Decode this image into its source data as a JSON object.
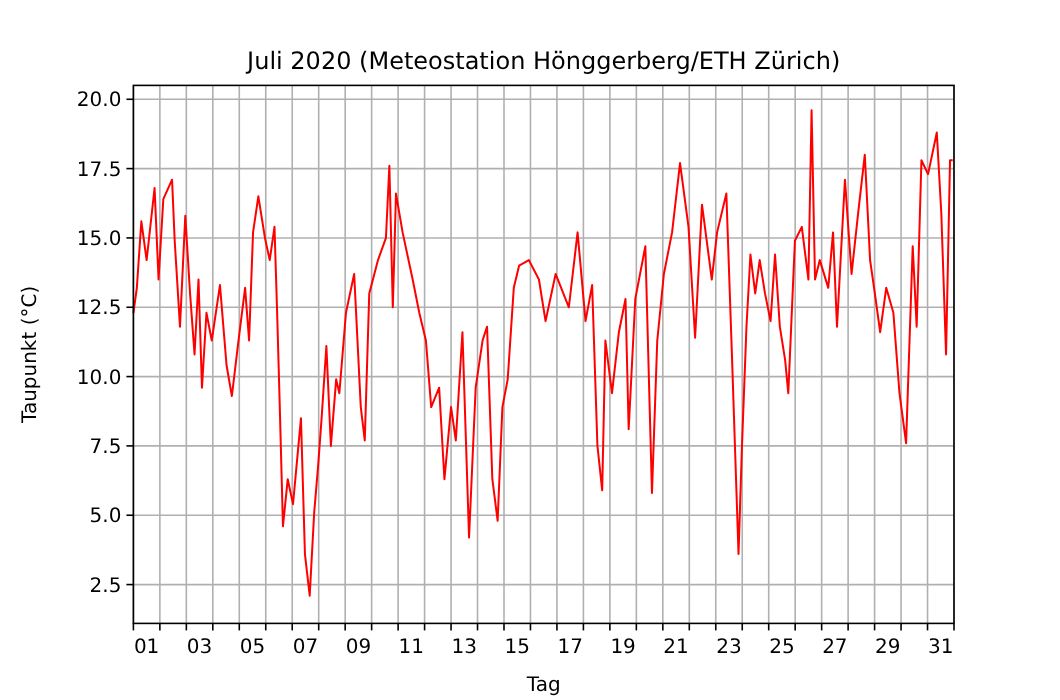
{
  "chart_data": {
    "type": "line",
    "title": "Juli 2020  (Meteostation Hönggerberg/ETH Zürich)",
    "xlabel": "Tag",
    "ylabel": "Taupunkt (°C)",
    "grid": true,
    "marker": "none",
    "line_style": "solid",
    "xlim": [
      1,
      32
    ],
    "ylim": [
      1.1,
      20.5
    ],
    "xticks": [
      {
        "value": 1,
        "label": null
      },
      {
        "value": 2,
        "label": null
      },
      {
        "value": 3,
        "label": null
      },
      {
        "value": 4,
        "label": null
      },
      {
        "value": 5,
        "label": null
      },
      {
        "value": 6,
        "label": null
      },
      {
        "value": 7,
        "label": null
      },
      {
        "value": 8,
        "label": null
      },
      {
        "value": 9,
        "label": null
      },
      {
        "value": 10,
        "label": null
      },
      {
        "value": 11,
        "label": null
      },
      {
        "value": 12,
        "label": null
      },
      {
        "value": 13,
        "label": null
      },
      {
        "value": 14,
        "label": null
      },
      {
        "value": 15,
        "label": null
      },
      {
        "value": 16,
        "label": null
      },
      {
        "value": 17,
        "label": null
      },
      {
        "value": 18,
        "label": null
      },
      {
        "value": 19,
        "label": null
      },
      {
        "value": 20,
        "label": null
      },
      {
        "value": 21,
        "label": null
      },
      {
        "value": 22,
        "label": null
      },
      {
        "value": 23,
        "label": null
      },
      {
        "value": 24,
        "label": null
      },
      {
        "value": 25,
        "label": null
      },
      {
        "value": 26,
        "label": null
      },
      {
        "value": 27,
        "label": null
      },
      {
        "value": 28,
        "label": null
      },
      {
        "value": 29,
        "label": null
      },
      {
        "value": 30,
        "label": null
      },
      {
        "value": 31,
        "label": null
      },
      {
        "value": 32,
        "label": null
      },
      {
        "value": 1.5,
        "label": "01"
      },
      {
        "value": 3.5,
        "label": "03"
      },
      {
        "value": 5.5,
        "label": "05"
      },
      {
        "value": 7.5,
        "label": "07"
      },
      {
        "value": 9.5,
        "label": "09"
      },
      {
        "value": 11.5,
        "label": "11"
      },
      {
        "value": 13.5,
        "label": "13"
      },
      {
        "value": 15.5,
        "label": "15"
      },
      {
        "value": 17.5,
        "label": "17"
      },
      {
        "value": 19.5,
        "label": "19"
      },
      {
        "value": 21.5,
        "label": "21"
      },
      {
        "value": 23.5,
        "label": "23"
      },
      {
        "value": 25.5,
        "label": "25"
      },
      {
        "value": 27.5,
        "label": "27"
      },
      {
        "value": 29.5,
        "label": "29"
      },
      {
        "value": 31.5,
        "label": "31"
      }
    ],
    "yticks": [
      2.5,
      {
        "value": 5,
        "label": "5.0"
      },
      7.5,
      {
        "value": 10,
        "label": "10.0"
      },
      12.5,
      {
        "value": 15,
        "label": "15.0"
      },
      17.5,
      {
        "value": 20,
        "label": "20.0"
      }
    ],
    "series": [
      {
        "color": "#ff0000",
        "x": [
          1.0,
          1.13,
          1.3,
          1.5,
          1.8,
          1.95,
          2.13,
          2.46,
          2.56,
          2.76,
          2.96,
          3.14,
          3.31,
          3.46,
          3.59,
          3.76,
          3.96,
          4.27,
          4.52,
          4.72,
          4.97,
          5.22,
          5.37,
          5.52,
          5.72,
          5.97,
          6.15,
          6.33,
          6.43,
          6.53,
          6.65,
          6.83,
          7.03,
          7.33,
          7.48,
          7.66,
          7.83,
          7.98,
          8.11,
          8.29,
          8.46,
          8.66,
          8.78,
          9.03,
          9.34,
          9.59,
          9.74,
          9.91,
          10.24,
          10.54,
          10.67,
          10.8,
          10.92,
          11.17,
          11.55,
          11.8,
          12.05,
          12.25,
          12.55,
          12.75,
          13.0,
          13.18,
          13.43,
          13.68,
          13.93,
          14.19,
          14.36,
          14.56,
          14.76,
          14.94,
          15.14,
          15.37,
          15.57,
          15.94,
          16.32,
          16.57,
          16.95,
          17.45,
          17.78,
          18.08,
          18.33,
          18.53,
          18.71,
          18.83,
          19.08,
          19.34,
          19.59,
          19.71,
          19.96,
          20.34,
          20.59,
          20.79,
          21.04,
          21.35,
          21.65,
          21.97,
          22.22,
          22.48,
          22.85,
          23.05,
          23.4,
          23.61,
          23.86,
          23.99,
          24.16,
          24.31,
          24.49,
          24.66,
          24.86,
          25.07,
          25.24,
          25.42,
          25.62,
          25.74,
          25.99,
          26.25,
          26.5,
          26.62,
          26.75,
          26.93,
          27.25,
          27.43,
          27.58,
          27.88,
          28.13,
          28.38,
          28.63,
          28.83,
          29.01,
          29.21,
          29.44,
          29.71,
          29.94,
          30.19,
          30.44,
          30.59,
          30.77,
          31.02,
          31.35,
          31.52,
          31.7,
          31.85,
          31.95
        ],
        "values": [
          12.3,
          13.2,
          15.6,
          14.2,
          16.8,
          13.5,
          16.4,
          17.1,
          14.9,
          11.8,
          15.8,
          13.0,
          10.8,
          13.5,
          9.6,
          12.3,
          11.3,
          13.3,
          10.4,
          9.3,
          11.3,
          13.2,
          11.3,
          15.2,
          16.5,
          15.0,
          14.2,
          15.4,
          12.3,
          8.9,
          4.6,
          6.3,
          5.4,
          8.5,
          3.6,
          2.1,
          5.1,
          6.8,
          8.5,
          11.1,
          7.5,
          9.9,
          9.4,
          12.3,
          13.7,
          8.9,
          7.7,
          13.0,
          14.2,
          15.0,
          17.6,
          12.5,
          16.6,
          15.2,
          13.5,
          12.3,
          11.3,
          8.9,
          9.6,
          6.3,
          8.9,
          7.7,
          11.6,
          4.2,
          9.6,
          11.3,
          11.8,
          6.3,
          4.8,
          8.9,
          9.9,
          13.2,
          14.0,
          14.2,
          13.5,
          12.0,
          13.7,
          12.5,
          15.2,
          12.0,
          13.3,
          7.5,
          5.9,
          11.3,
          9.4,
          11.6,
          12.8,
          8.1,
          12.8,
          14.7,
          5.8,
          11.3,
          13.7,
          15.2,
          17.7,
          15.4,
          11.4,
          16.2,
          13.5,
          15.2,
          16.6,
          10.8,
          3.6,
          7.5,
          11.8,
          14.4,
          13.0,
          14.2,
          13.0,
          12.0,
          14.4,
          11.8,
          10.6,
          9.4,
          14.9,
          15.4,
          13.5,
          19.6,
          13.5,
          14.2,
          13.2,
          15.2,
          11.8,
          17.1,
          13.7,
          15.9,
          18.0,
          14.2,
          13.0,
          11.6,
          13.2,
          12.3,
          9.4,
          7.6,
          14.7,
          11.8,
          17.8,
          17.3,
          18.8,
          15.9,
          10.8,
          17.8,
          17.8
        ]
      }
    ]
  }
}
